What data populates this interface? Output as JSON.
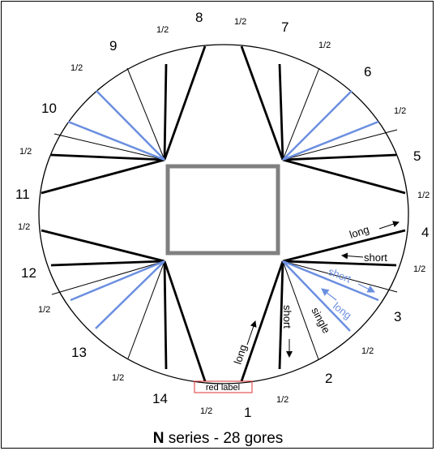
{
  "title": {
    "bold": "N",
    "rest": " series - 28 gores"
  },
  "gore_numbers": [
    "1",
    "2",
    "3",
    "4",
    "5",
    "6",
    "7",
    "8",
    "9",
    "10",
    "11",
    "12",
    "13",
    "14"
  ],
  "half_label": "1/2",
  "labels": {
    "long_bottom": "long",
    "short_bottom": "short",
    "single": "single",
    "short_blue": "short",
    "long_blue": "long",
    "long_right": "long",
    "short_right": "short",
    "red_label": "red label"
  },
  "colors": {
    "black": "#000000",
    "blue": "#6b8fe0",
    "grey": "#808080",
    "red": "#e03030"
  }
}
